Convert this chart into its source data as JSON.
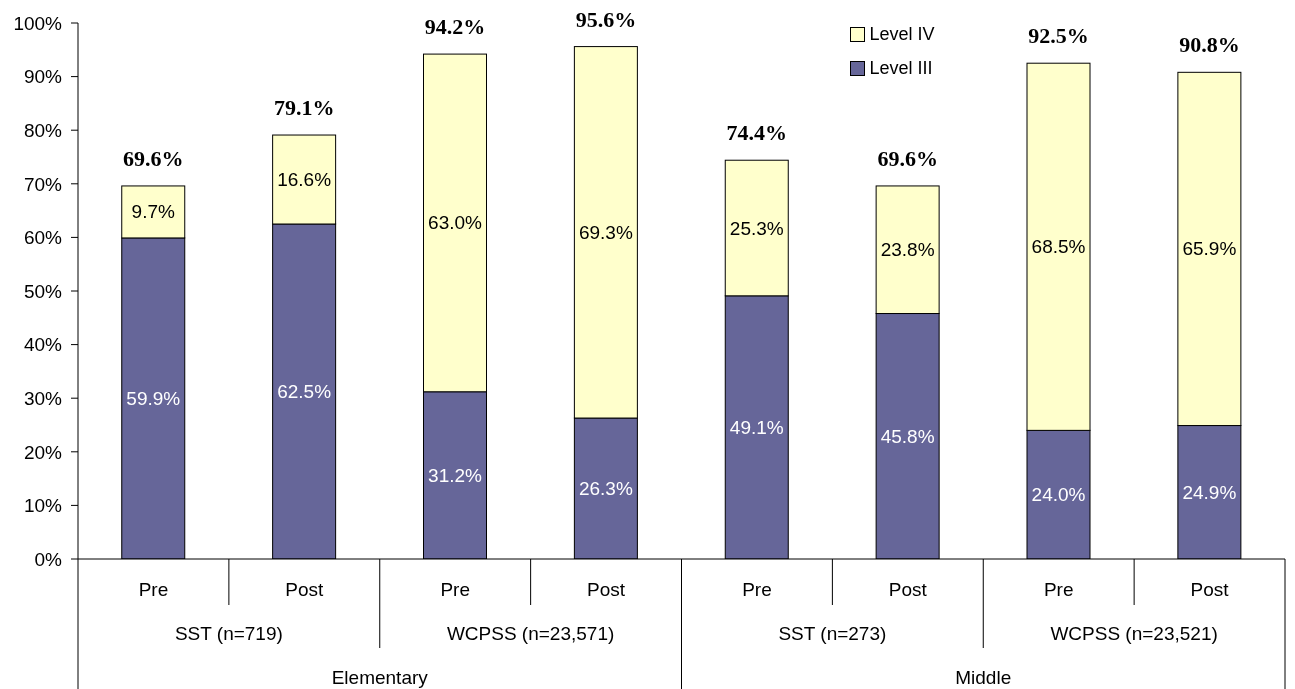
{
  "chart_data": {
    "type": "bar",
    "stacked": true,
    "categories": [
      "Pre",
      "Post",
      "Pre",
      "Post",
      "Pre",
      "Post",
      "Pre",
      "Post"
    ],
    "series": [
      {
        "name": "Level III",
        "color": "#666699",
        "values": [
          59.9,
          62.5,
          31.2,
          26.3,
          49.1,
          45.8,
          24.0,
          24.9
        ],
        "value_labels": [
          "59.9%",
          "62.5%",
          "31.2%",
          "26.3%",
          "49.1%",
          "45.8%",
          "24.0%",
          "24.9%"
        ]
      },
      {
        "name": "Level IV",
        "color": "#ffffcc",
        "values": [
          9.7,
          16.6,
          63.0,
          69.3,
          25.3,
          23.8,
          68.5,
          65.9
        ],
        "value_labels": [
          "9.7%",
          "16.6%",
          "63.0%",
          "69.3%",
          "25.3%",
          "23.8%",
          "68.5%",
          "65.9%"
        ]
      }
    ],
    "totals": [
      "69.6%",
      "79.1%",
      "94.2%",
      "95.6%",
      "74.4%",
      "69.6%",
      "92.5%",
      "90.8%"
    ],
    "ylim": [
      0,
      100
    ],
    "yticks": [
      {
        "value": 0,
        "label": "0%"
      },
      {
        "value": 10,
        "label": "10%"
      },
      {
        "value": 20,
        "label": "20%"
      },
      {
        "value": 30,
        "label": "30%"
      },
      {
        "value": 40,
        "label": "40%"
      },
      {
        "value": 50,
        "label": "50%"
      },
      {
        "value": 60,
        "label": "60%"
      },
      {
        "value": 70,
        "label": "70%"
      },
      {
        "value": 80,
        "label": "80%"
      },
      {
        "value": 90,
        "label": "90%"
      },
      {
        "value": 100,
        "label": "100%"
      }
    ],
    "legend": "top right",
    "annotations": [
      "SST (n=719)",
      "WCPSS (n=23,571)",
      "SST (n=273)",
      "WCPSS (n=23,521)",
      "Elementary",
      "Middle"
    ]
  }
}
